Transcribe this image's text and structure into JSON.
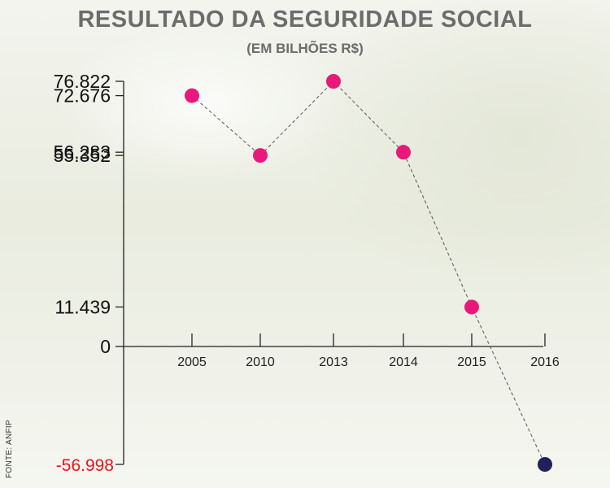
{
  "header": {
    "title": "RESULTADO DA SEGURIDADE SOCIAL",
    "subtitle": "(EM BILHÕES R$)"
  },
  "source": "FONTE: ANFIP",
  "colors": {
    "positive_point": "#e8197a",
    "negative_point": "#20205a",
    "negative_label": "#e3151a",
    "axis": "#222222",
    "connector": "#555555"
  },
  "chart_data": {
    "type": "line",
    "title": "RESULTADO DA SEGURIDADE SOCIAL",
    "subtitle": "(EM BILHÕES R$)",
    "categories": [
      "2005",
      "2010",
      "2013",
      "2014",
      "2015",
      "2016"
    ],
    "values": [
      72.676,
      55.352,
      76.822,
      56.283,
      11.439,
      -56.998
    ],
    "value_labels": [
      "72.676",
      "55.352",
      "76.822",
      "56.283",
      "11.439",
      "-56.998"
    ],
    "ytick_labels": [
      "76.822",
      "72.676",
      "56.283",
      "55.352",
      "11.439",
      "0",
      "-56.998"
    ],
    "ytick_values": [
      76.822,
      72.676,
      56.283,
      55.352,
      11.439,
      0,
      -56.998
    ],
    "ylim": [
      -56.998,
      76.822
    ],
    "xlabel": "",
    "ylabel": "",
    "line_style": "dashed",
    "grid": false,
    "legend": "none"
  }
}
